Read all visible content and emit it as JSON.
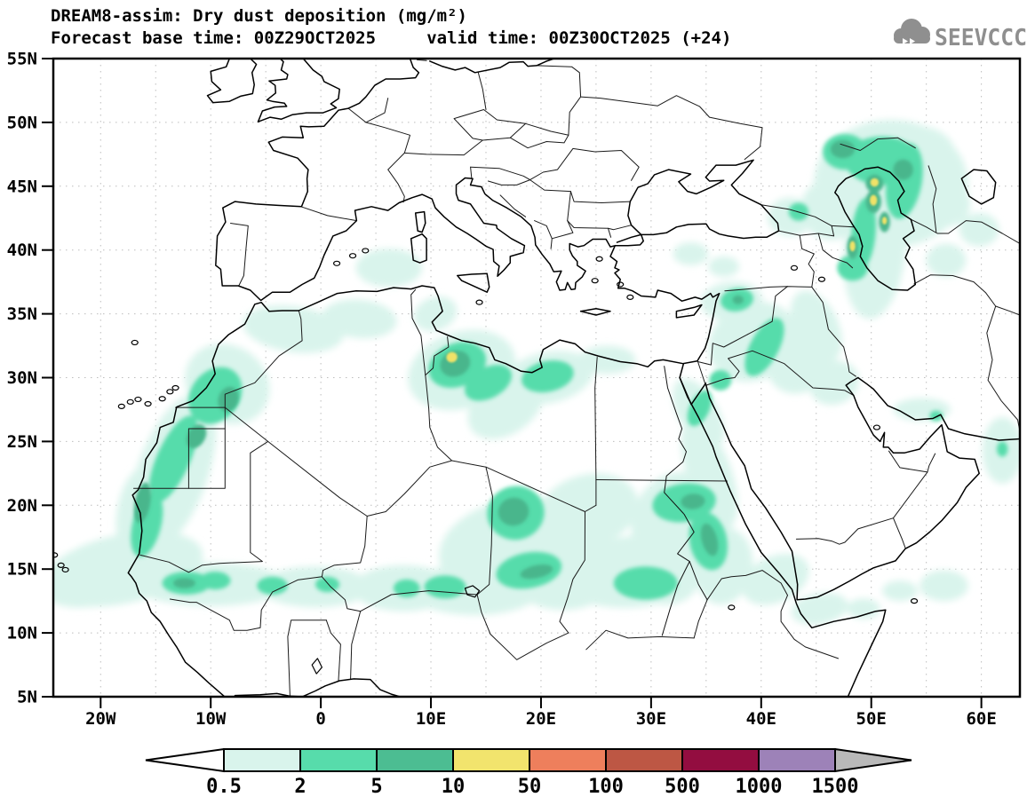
{
  "header": {
    "title_line1": "DREAM8-assim: Dry dust deposition (mg/m²)",
    "title_line2": "Forecast base time: 00Z29OCT2025     valid time: 00Z30OCT2025 (+24)",
    "logo_text": "SEEVCCC"
  },
  "chart_data": {
    "type": "heatmap",
    "title": "DREAM8-assim: Dry dust deposition (mg/m²)",
    "subtitle": "Forecast base time: 00Z29OCT2025  valid time: 00Z30OCT2025 (+24)",
    "units": "mg/m²",
    "extent": {
      "lon_min": -24.3,
      "lon_max": 63.5,
      "lat_min": 5,
      "lat_max": 55
    },
    "grid_on": true,
    "lon_gridlines": [
      -20,
      -15,
      -10,
      -5,
      0,
      5,
      10,
      15,
      20,
      25,
      30,
      35,
      40,
      45,
      50,
      55,
      60
    ],
    "lat_gridlines": [
      10,
      15,
      20,
      25,
      30,
      35,
      40,
      45,
      50
    ],
    "x_ticks": [
      {
        "label": "20W",
        "lon": -20
      },
      {
        "label": "10W",
        "lon": -10
      },
      {
        "label": "0",
        "lon": 0
      },
      {
        "label": "10E",
        "lon": 10
      },
      {
        "label": "20E",
        "lon": 20
      },
      {
        "label": "30E",
        "lon": 30
      },
      {
        "label": "40E",
        "lon": 40
      },
      {
        "label": "50E",
        "lon": 50
      },
      {
        "label": "60E",
        "lon": 60
      }
    ],
    "y_ticks": [
      {
        "label": "55N",
        "lat": 55
      },
      {
        "label": "50N",
        "lat": 50
      },
      {
        "label": "45N",
        "lat": 45
      },
      {
        "label": "40N",
        "lat": 40
      },
      {
        "label": "35N",
        "lat": 35
      },
      {
        "label": "30N",
        "lat": 30
      },
      {
        "label": "25N",
        "lat": 25
      },
      {
        "label": "20N",
        "lat": 20
      },
      {
        "label": "15N",
        "lat": 15
      },
      {
        "label": "10N",
        "lat": 10
      },
      {
        "label": "5N",
        "lat": 5
      }
    ],
    "colorbar": {
      "labels": [
        "0.5",
        "2",
        "5",
        "10",
        "50",
        "100",
        "500",
        "1000",
        "1500"
      ],
      "segment_colors": [
        "#d9f4ec",
        "#57dcab",
        "#4cbd92",
        "#f2e46d",
        "#ee7f5c",
        "#bd5744",
        "#930d40",
        "#9d82b8"
      ],
      "under_color": "#ffffff",
      "over_color": "#b9b9b9",
      "position": "bottom"
    },
    "level_ranges": {
      "1": "0.5-2",
      "2": "2-5",
      "3": "5-10",
      "4": "10-50"
    },
    "level_colors": {
      "1": "#d9f4ec",
      "2": "#57dcab",
      "3": "#49b68c",
      "4": "#f0e267"
    },
    "deposition_regions": {
      "fields": [
        "level",
        "lon",
        "lat",
        "rx_deg",
        "ry_deg",
        "rotation_deg"
      ],
      "points": [
        [
          1,
          -18.0,
          15.0,
          7.4,
          2.7,
          -12
        ],
        [
          1,
          -21.5,
          13.8,
          4.0,
          1.8,
          -5
        ],
        [
          1,
          -13.5,
          22.5,
          3.2,
          6.6,
          20
        ],
        [
          1,
          -8.5,
          29.5,
          4.0,
          3.0,
          35
        ],
        [
          1,
          -2.5,
          33.8,
          4.6,
          1.8,
          8
        ],
        [
          1,
          3.5,
          34.6,
          3.4,
          1.5,
          5
        ],
        [
          1,
          6.2,
          38.6,
          3.0,
          1.5,
          0
        ],
        [
          1,
          -10.0,
          13.8,
          7.0,
          1.7,
          0
        ],
        [
          1,
          -0.5,
          13.6,
          5.0,
          1.6,
          0
        ],
        [
          1,
          7.5,
          13.5,
          4.6,
          1.8,
          0
        ],
        [
          1,
          12.8,
          30.6,
          5.0,
          3.0,
          -18
        ],
        [
          1,
          16.8,
          27.8,
          3.8,
          2.2,
          -35
        ],
        [
          1,
          20.6,
          30.0,
          4.2,
          2.0,
          -12
        ],
        [
          1,
          26.0,
          31.4,
          2.6,
          1.1,
          0
        ],
        [
          1,
          18.3,
          16.6,
          7.6,
          4.0,
          -8
        ],
        [
          1,
          14.0,
          13.4,
          6.0,
          2.0,
          0
        ],
        [
          1,
          24.3,
          19.6,
          4.6,
          2.8,
          -15
        ],
        [
          1,
          28.4,
          14.8,
          6.6,
          2.8,
          -5
        ],
        [
          1,
          32.8,
          18.2,
          4.6,
          4.4,
          0
        ],
        [
          1,
          35.3,
          22.5,
          2.0,
          4.4,
          -20
        ],
        [
          1,
          36.6,
          15.2,
          2.6,
          3.0,
          10
        ],
        [
          1,
          41.3,
          14.2,
          3.2,
          1.8,
          -25
        ],
        [
          1,
          45.3,
          11.9,
          2.6,
          1.2,
          -10
        ],
        [
          1,
          39.3,
          32.8,
          4.2,
          3.0,
          -25
        ],
        [
          1,
          43.3,
          31.0,
          2.8,
          2.2,
          -30
        ],
        [
          1,
          37.3,
          36.0,
          2.8,
          1.5,
          -5
        ],
        [
          1,
          46.6,
          29.6,
          2.3,
          1.7,
          -20
        ],
        [
          1,
          34.3,
          27.2,
          1.8,
          3.0,
          -30
        ],
        [
          1,
          51.8,
          45.2,
          7.0,
          5.0,
          0
        ],
        [
          1,
          50.3,
          40.0,
          2.8,
          5.4,
          5
        ],
        [
          1,
          46.4,
          43.2,
          2.8,
          2.4,
          0
        ],
        [
          1,
          54.3,
          47.3,
          3.4,
          2.4,
          0
        ],
        [
          1,
          56.6,
          43.6,
          2.4,
          1.8,
          0
        ],
        [
          1,
          59.8,
          41.6,
          1.8,
          1.3,
          0
        ],
        [
          1,
          56.8,
          39.2,
          1.8,
          1.3,
          0
        ],
        [
          1,
          42.6,
          42.6,
          2.0,
          1.5,
          0
        ],
        [
          1,
          33.6,
          39.7,
          1.6,
          0.9,
          0
        ],
        [
          1,
          36.6,
          38.7,
          1.4,
          0.8,
          0
        ],
        [
          1,
          54.6,
          27.5,
          2.6,
          0.9,
          0
        ],
        [
          1,
          61.9,
          24.3,
          1.8,
          2.6,
          0
        ],
        [
          1,
          52.6,
          13.3,
          1.6,
          0.8,
          0
        ],
        [
          1,
          56.6,
          13.7,
          2.2,
          1.2,
          0
        ],
        [
          1,
          49.3,
          11.9,
          1.5,
          0.8,
          0
        ],
        [
          1,
          31.3,
          14.2,
          3.0,
          2.0,
          0
        ],
        [
          1,
          22.0,
          13.6,
          4.0,
          1.8,
          0
        ],
        [
          1,
          -16.5,
          19.5,
          2.0,
          3.6,
          10
        ],
        [
          1,
          10.4,
          35.0,
          2.0,
          1.3,
          -20
        ],
        [
          1,
          45.0,
          34.0,
          2.0,
          3.0,
          -25
        ],
        [
          2,
          -15.8,
          18.5,
          1.3,
          2.6,
          14
        ],
        [
          2,
          -13.4,
          23.6,
          1.5,
          3.7,
          24
        ],
        [
          2,
          -9.6,
          28.6,
          2.2,
          2.4,
          38
        ],
        [
          2,
          -12.2,
          13.9,
          2.2,
          0.9,
          0
        ],
        [
          2,
          -9.6,
          14.1,
          1.4,
          0.7,
          0
        ],
        [
          2,
          -4.4,
          13.7,
          1.4,
          0.7,
          0
        ],
        [
          2,
          0.6,
          13.8,
          1.1,
          0.6,
          0
        ],
        [
          2,
          12.4,
          31.0,
          2.7,
          1.7,
          -22
        ],
        [
          2,
          15.2,
          29.6,
          2.3,
          1.2,
          -28
        ],
        [
          2,
          20.6,
          30.1,
          2.4,
          1.2,
          -12
        ],
        [
          2,
          17.7,
          19.4,
          2.6,
          2.1,
          -12
        ],
        [
          2,
          18.9,
          14.9,
          3.0,
          1.4,
          -10
        ],
        [
          2,
          11.3,
          13.6,
          1.9,
          0.9,
          0
        ],
        [
          2,
          7.8,
          13.5,
          1.2,
          0.7,
          0
        ],
        [
          2,
          33.0,
          20.2,
          2.9,
          1.5,
          -8
        ],
        [
          2,
          35.2,
          17.2,
          1.7,
          2.3,
          -12
        ],
        [
          2,
          29.5,
          13.9,
          2.9,
          1.3,
          0
        ],
        [
          2,
          40.3,
          32.4,
          1.3,
          2.5,
          28
        ],
        [
          2,
          36.3,
          29.8,
          1.0,
          0.8,
          0
        ],
        [
          2,
          37.8,
          36.1,
          1.5,
          0.9,
          -10
        ],
        [
          2,
          34.4,
          27.6,
          0.9,
          1.5,
          25
        ],
        [
          2,
          51.0,
          47.0,
          3.4,
          1.9,
          0
        ],
        [
          2,
          47.6,
          47.7,
          2.0,
          1.4,
          0
        ],
        [
          2,
          53.0,
          45.4,
          1.6,
          3.0,
          10
        ],
        [
          2,
          49.3,
          41.3,
          1.1,
          2.8,
          5
        ],
        [
          2,
          48.3,
          38.6,
          1.4,
          1.0,
          0
        ],
        [
          2,
          43.4,
          43.0,
          0.9,
          0.7,
          0
        ],
        [
          2,
          55.9,
          27.0,
          0.6,
          0.4,
          0
        ],
        [
          2,
          61.9,
          24.4,
          0.5,
          0.6,
          0
        ],
        [
          3,
          -16.2,
          20.2,
          0.7,
          1.6,
          10
        ],
        [
          3,
          -11.3,
          25.4,
          0.8,
          1.0,
          30
        ],
        [
          3,
          -8.4,
          28.3,
          0.9,
          1.0,
          20
        ],
        [
          3,
          12.2,
          31.1,
          1.4,
          1.0,
          -22
        ],
        [
          3,
          17.5,
          19.5,
          1.4,
          1.1,
          -10
        ],
        [
          3,
          19.6,
          14.8,
          1.5,
          0.5,
          -12
        ],
        [
          3,
          33.8,
          20.3,
          1.1,
          0.6,
          -5
        ],
        [
          3,
          35.3,
          17.3,
          0.7,
          1.3,
          -15
        ],
        [
          3,
          47.4,
          47.9,
          1.1,
          0.7,
          0
        ],
        [
          3,
          52.9,
          46.3,
          0.9,
          0.8,
          0
        ],
        [
          3,
          50.3,
          45.2,
          0.8,
          0.7,
          0
        ],
        [
          3,
          50.2,
          43.8,
          0.7,
          0.9,
          0
        ],
        [
          3,
          51.2,
          42.2,
          0.5,
          0.8,
          0
        ],
        [
          3,
          48.3,
          40.2,
          0.5,
          0.9,
          0
        ],
        [
          3,
          -12.4,
          13.9,
          1.0,
          0.4,
          0
        ],
        [
          3,
          37.9,
          36.1,
          0.5,
          0.35,
          0
        ],
        [
          4,
          11.9,
          31.6,
          0.5,
          0.4,
          -20
        ],
        [
          4,
          50.3,
          45.3,
          0.38,
          0.33,
          0
        ],
        [
          4,
          50.2,
          43.9,
          0.33,
          0.42,
          0
        ],
        [
          4,
          48.3,
          40.3,
          0.26,
          0.4,
          0
        ],
        [
          4,
          51.2,
          42.3,
          0.22,
          0.3,
          0
        ]
      ]
    }
  }
}
